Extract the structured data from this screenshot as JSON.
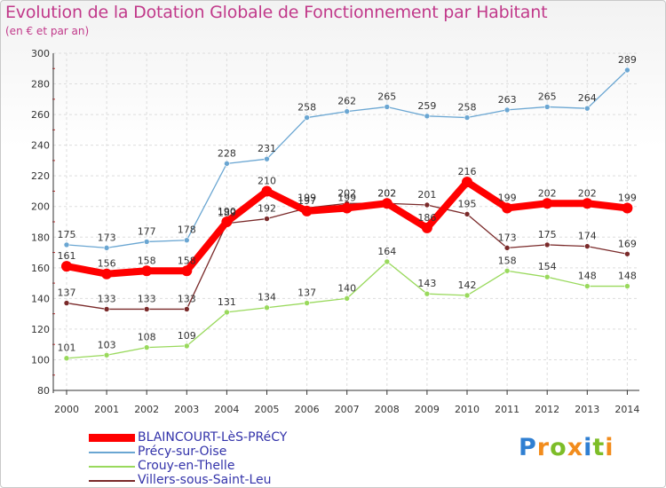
{
  "title": "Evolution de la Dotation Globale de Fonctionnement par Habitant",
  "subtitle": "(en € et par an)",
  "logo": {
    "letters": [
      {
        "ch": "P",
        "color": "#2f7fd2"
      },
      {
        "ch": "r",
        "color": "#f28c1c"
      },
      {
        "ch": "o",
        "color": "#7dbd28"
      },
      {
        "ch": "x",
        "color": "#f28c1c"
      },
      {
        "ch": "i",
        "color": "#2f7fd2"
      },
      {
        "ch": "t",
        "color": "#7dbd28"
      },
      {
        "ch": "i",
        "color": "#f28c1c"
      }
    ]
  },
  "chart_data": {
    "type": "line",
    "title": "Evolution de la Dotation Globale de Fonctionnement par Habitant",
    "xlabel": "",
    "ylabel": "(en € et par an)",
    "ylim": [
      80,
      300
    ],
    "yticks": [
      80,
      100,
      120,
      140,
      160,
      180,
      200,
      220,
      240,
      260,
      280,
      300
    ],
    "categories": [
      "2000",
      "2001",
      "2002",
      "2003",
      "2004",
      "2005",
      "2006",
      "2007",
      "2008",
      "2009",
      "2010",
      "2011",
      "2012",
      "2013",
      "2014"
    ],
    "grid": true,
    "legend_position": "bottom-left",
    "series": [
      {
        "name": "Précy-sur-Oise",
        "color": "#6aa6d2",
        "values": [
          175,
          173,
          177,
          178,
          228,
          231,
          258,
          262,
          265,
          259,
          258,
          263,
          265,
          264,
          289
        ]
      },
      {
        "name": "Crouy-en-Thelle",
        "color": "#99d95c",
        "values": [
          101,
          103,
          108,
          109,
          131,
          134,
          137,
          140,
          164,
          143,
          142,
          158,
          154,
          148,
          148
        ]
      },
      {
        "name": "Villers-sous-Saint-Leu",
        "color": "#7a2a2a",
        "values": [
          137,
          133,
          133,
          133,
          189,
          192,
          199,
          202,
          202,
          201,
          195,
          173,
          175,
          174,
          169
        ]
      },
      {
        "name": "BLAINCOURT-LèS-PRéCY",
        "color": "#ff0000",
        "highlight": true,
        "values": [
          161,
          156,
          158,
          158,
          190,
          210,
          197,
          199,
          202,
          186,
          216,
          199,
          202,
          202,
          199
        ]
      }
    ]
  }
}
